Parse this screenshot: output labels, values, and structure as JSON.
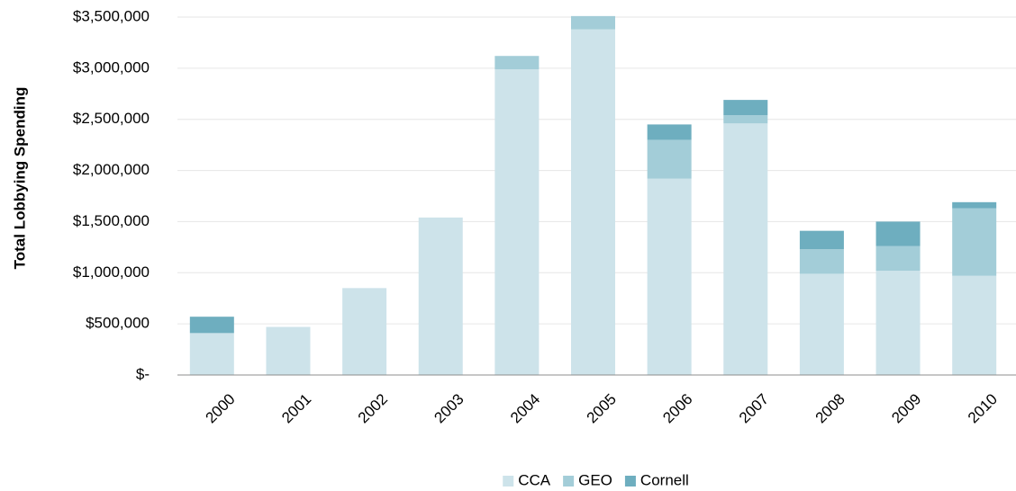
{
  "chart_data": {
    "type": "bar",
    "stacked": true,
    "title": "",
    "xlabel": "",
    "ylabel": "Total Lobbying Spending",
    "categories": [
      "2000",
      "2001",
      "2002",
      "2003",
      "2004",
      "2005",
      "2006",
      "2007",
      "2008",
      "2009",
      "2010"
    ],
    "series": [
      {
        "name": "CCA",
        "color": "#cde3ea",
        "values": [
          410000,
          470000,
          850000,
          1540000,
          2990000,
          3380000,
          1920000,
          2460000,
          990000,
          1020000,
          970000
        ]
      },
      {
        "name": "GEO",
        "color": "#a3cdd8",
        "values": [
          0,
          0,
          0,
          0,
          130000,
          130000,
          380000,
          80000,
          240000,
          240000,
          660000
        ]
      },
      {
        "name": "Cornell",
        "color": "#6eaebf",
        "values": [
          160000,
          0,
          0,
          0,
          0,
          0,
          150000,
          150000,
          180000,
          240000,
          60000
        ]
      }
    ],
    "y_ticks": [
      0,
      500000,
      1000000,
      1500000,
      2000000,
      2500000,
      3000000,
      3500000
    ],
    "y_tick_labels": [
      "$-",
      "$500,000",
      "$1,000,000",
      "$1,500,000",
      "$2,000,000",
      "$2,500,000",
      "$3,000,000",
      "$3,500,000"
    ],
    "ylim": [
      0,
      3500000
    ],
    "grid": true,
    "legend_position": "bottom",
    "gridline_color": "#e6e6e6",
    "axis_color": "#8c8c8c"
  }
}
